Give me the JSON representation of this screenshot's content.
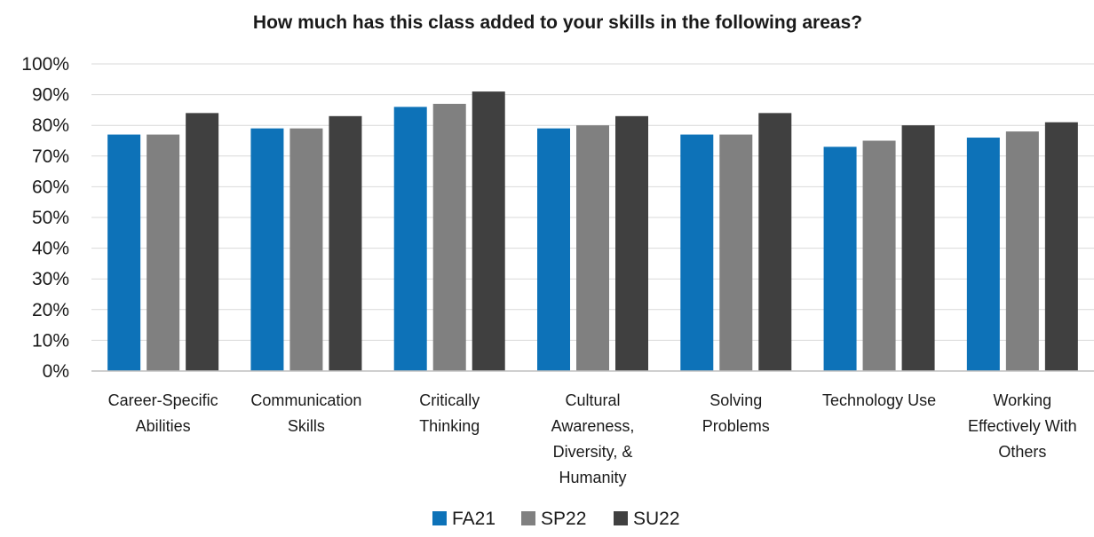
{
  "chart_data": {
    "type": "bar",
    "title": "How much has this class added to your skills in the following areas?",
    "xlabel": "",
    "ylabel": "",
    "ylim": [
      0,
      100
    ],
    "ytick_step": 10,
    "ytick_format": "{v}%",
    "grid": true,
    "legend_position": "bottom",
    "categories": [
      [
        "Career-Specific",
        "Abilities"
      ],
      [
        "Communication",
        "Skills"
      ],
      [
        "Critically",
        "Thinking"
      ],
      [
        "Cultural",
        "Awareness,",
        "Diversity, &",
        "Humanity"
      ],
      [
        "Solving",
        "Problems"
      ],
      [
        "Technology Use"
      ],
      [
        "Working",
        "Effectively With",
        "Others"
      ]
    ],
    "series": [
      {
        "name": "FA21",
        "color": "#0d72b8",
        "values": [
          77,
          79,
          86,
          79,
          77,
          73,
          76
        ]
      },
      {
        "name": "SP22",
        "color": "#808080",
        "values": [
          77,
          79,
          87,
          80,
          77,
          75,
          78
        ]
      },
      {
        "name": "SU22",
        "color": "#404040",
        "values": [
          84,
          83,
          91,
          83,
          84,
          80,
          81
        ]
      }
    ]
  }
}
